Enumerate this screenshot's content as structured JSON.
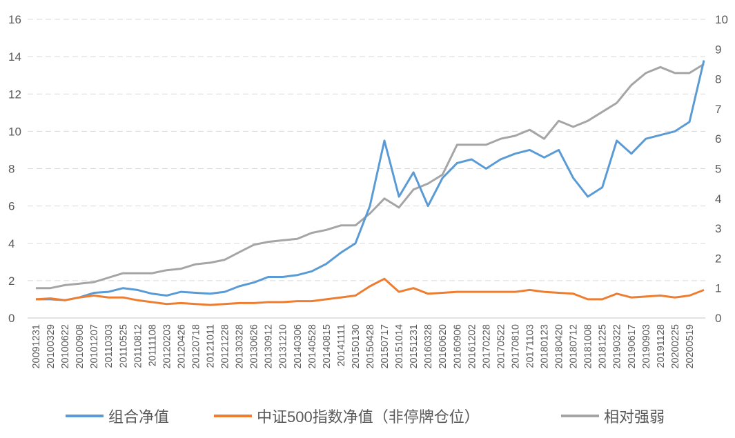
{
  "chart_data": {
    "type": "line",
    "title": "",
    "x": [
      "20091231",
      "20100329",
      "20100622",
      "20100908",
      "20101207",
      "20110303",
      "20110525",
      "20110812",
      "20111108",
      "20120203",
      "20120426",
      "20120718",
      "20121011",
      "20121228",
      "20130328",
      "20130626",
      "20130912",
      "20131210",
      "20140306",
      "20140528",
      "20140815",
      "20141111",
      "20150130",
      "20150428",
      "20150717",
      "20151014",
      "20151231",
      "20160328",
      "20160620",
      "20160906",
      "20161202",
      "20170228",
      "20170522",
      "20170810",
      "20171103",
      "20180123",
      "20180420",
      "20180712",
      "20181008",
      "20181225",
      "20190322",
      "20190617",
      "20190903",
      "20191128",
      "20200225",
      "20200519",
      ""
    ],
    "left_axis": {
      "ylim": [
        0,
        16
      ],
      "ticks": [
        0,
        2,
        4,
        6,
        8,
        10,
        12,
        14,
        16
      ]
    },
    "right_axis": {
      "ylim": [
        0,
        10
      ],
      "ticks": [
        0,
        1,
        2,
        3,
        4,
        5,
        6,
        7,
        8,
        9,
        10
      ]
    },
    "grid": true,
    "legend_position": "bottom",
    "series": [
      {
        "name": "组合净值",
        "axis": "left",
        "color": "#5B9BD5",
        "values": [
          1.0,
          1.0,
          0.95,
          1.1,
          1.35,
          1.4,
          1.6,
          1.5,
          1.3,
          1.2,
          1.4,
          1.35,
          1.3,
          1.4,
          1.7,
          1.9,
          2.2,
          2.2,
          2.3,
          2.5,
          2.9,
          3.5,
          4.0,
          6.0,
          9.5,
          6.5,
          7.8,
          6.0,
          7.5,
          8.3,
          8.5,
          8.0,
          8.5,
          8.8,
          9.0,
          8.6,
          9.0,
          7.5,
          6.5,
          7.0,
          9.5,
          8.8,
          9.6,
          9.8,
          10.0,
          10.5,
          13.8
        ]
      },
      {
        "name": "中证500指数净值（非停牌仓位）",
        "axis": "left",
        "color": "#ED7D31",
        "values": [
          1.0,
          1.05,
          0.95,
          1.1,
          1.2,
          1.1,
          1.1,
          0.95,
          0.85,
          0.75,
          0.8,
          0.75,
          0.7,
          0.75,
          0.8,
          0.8,
          0.85,
          0.85,
          0.9,
          0.9,
          1.0,
          1.1,
          1.2,
          1.7,
          2.1,
          1.4,
          1.6,
          1.3,
          1.35,
          1.4,
          1.4,
          1.4,
          1.4,
          1.4,
          1.5,
          1.4,
          1.35,
          1.3,
          1.0,
          1.0,
          1.3,
          1.1,
          1.15,
          1.2,
          1.1,
          1.2,
          1.5
        ]
      },
      {
        "name": "相对强弱",
        "axis": "right",
        "color": "#A5A5A5",
        "values": [
          1.0,
          1.0,
          1.1,
          1.15,
          1.2,
          1.35,
          1.5,
          1.5,
          1.5,
          1.6,
          1.65,
          1.8,
          1.85,
          1.95,
          2.2,
          2.45,
          2.55,
          2.6,
          2.65,
          2.85,
          2.95,
          3.1,
          3.1,
          3.5,
          4.0,
          3.7,
          4.3,
          4.5,
          4.8,
          5.8,
          5.8,
          5.8,
          6.0,
          6.1,
          6.3,
          6.0,
          6.6,
          6.4,
          6.6,
          6.9,
          7.2,
          7.8,
          8.2,
          8.4,
          8.2,
          8.2,
          8.5
        ]
      }
    ]
  }
}
